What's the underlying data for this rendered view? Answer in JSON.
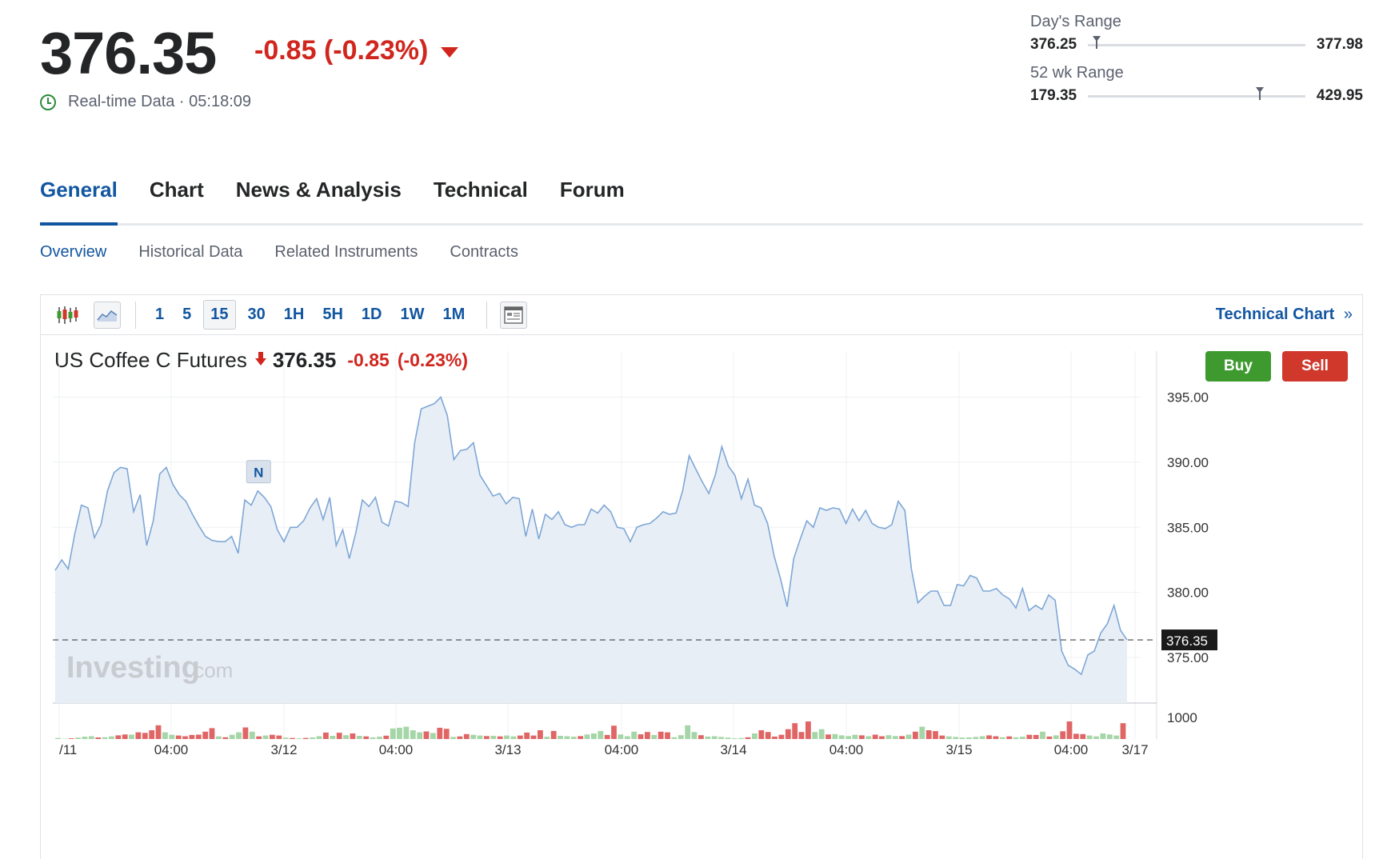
{
  "quote": {
    "last": "376.35",
    "change": "-0.85 (-0.23%)",
    "realtime": "Real-time Data · 05:18:09"
  },
  "ranges": [
    {
      "label": "Day's Range",
      "low": "376.25",
      "high": "377.98",
      "position": 0.04
    },
    {
      "label": "52 wk Range",
      "low": "179.35",
      "high": "429.95",
      "position": 0.79
    }
  ],
  "tabs": [
    "General",
    "Chart",
    "News & Analysis",
    "Technical",
    "Forum"
  ],
  "subtabs": [
    "Overview",
    "Historical Data",
    "Related Instruments",
    "Contracts"
  ],
  "toolbar": {
    "intervals": [
      "1",
      "5",
      "15",
      "30",
      "1H",
      "5H",
      "1D",
      "1W",
      "1M"
    ],
    "active_interval": "15",
    "technical_link": "Technical Chart"
  },
  "instrument": {
    "name": "US Coffee C Futures",
    "price": "376.35",
    "change": "-0.85",
    "change_pct": "(-0.23%)",
    "buy_label": "Buy",
    "sell_label": "Sell"
  },
  "watermark": {
    "brand": "Investing",
    "suffix": ".com"
  },
  "news_marker": "N",
  "chart_data": {
    "type": "area",
    "title": "",
    "y_ticks": [
      "395.00",
      "390.00",
      "385.00",
      "380.00",
      "375.00"
    ],
    "ylim": [
      371.5,
      397
    ],
    "x_tick_labels": [
      "/11",
      "04:00",
      "3/12",
      "04:00",
      "3/13",
      "04:00",
      "3/14",
      "04:00",
      "3/15",
      "04:00",
      "3/17"
    ],
    "current_price_label": "376.35",
    "current_price": 376.35,
    "volume_tick_label": "1000",
    "price_series": [
      381.7,
      382.5,
      381.8,
      384.5,
      386.7,
      386.5,
      384.2,
      385.2,
      387.8,
      389.2,
      389.6,
      389.5,
      386.2,
      387.5,
      383.6,
      385.5,
      389.1,
      389.6,
      388.3,
      387.5,
      387.0,
      386.0,
      385.1,
      384.3,
      384.0,
      383.9,
      383.9,
      384.3,
      383.0,
      387.1,
      386.7,
      387.8,
      387.3,
      386.6,
      384.8,
      383.9,
      385.0,
      385.0,
      385.5,
      386.5,
      387.2,
      385.6,
      387.3,
      383.6,
      384.8,
      382.6,
      384.6,
      387.1,
      386.6,
      387.3,
      385.4,
      385.1,
      387.0,
      386.9,
      386.6,
      391.5,
      394.1,
      394.3,
      394.5,
      395.0,
      393.6,
      390.2,
      390.9,
      391.0,
      391.5,
      389.0,
      388.2,
      387.4,
      387.6,
      386.8,
      387.3,
      387.2,
      384.3,
      386.4,
      384.1,
      386.0,
      385.6,
      386.2,
      385.2,
      385.0,
      385.2,
      385.2,
      386.4,
      386.1,
      386.7,
      386.2,
      385.0,
      384.9,
      383.9,
      385.0,
      385.2,
      385.3,
      385.7,
      386.2,
      386.0,
      386.1,
      387.8,
      390.5,
      389.5,
      388.5,
      387.6,
      389.0,
      391.2,
      389.7,
      389.0,
      387.2,
      388.7,
      386.7,
      386.5,
      385.3,
      382.8,
      381.0,
      378.9,
      382.6,
      384.1,
      385.5,
      385.0,
      386.5,
      386.3,
      386.5,
      386.4,
      385.3,
      386.4,
      385.5,
      386.3,
      385.3,
      385.0,
      384.9,
      385.2,
      387.0,
      386.3,
      381.8,
      379.2,
      379.7,
      380.1,
      380.1,
      379.0,
      379.0,
      380.6,
      380.5,
      381.3,
      381.1,
      380.1,
      380.1,
      380.3,
      379.8,
      379.5,
      378.8,
      380.3,
      378.6,
      379.0,
      378.7,
      379.8,
      379.4,
      375.5,
      374.4,
      374.1,
      373.7,
      375.2,
      375.5,
      376.9,
      377.6,
      379.0,
      377.1,
      376.35
    ],
    "volume_series": [
      {
        "v": 60,
        "up": true
      },
      {
        "v": 20,
        "up": true
      },
      {
        "v": 40,
        "up": false
      },
      {
        "v": 80,
        "up": true
      },
      {
        "v": 130,
        "up": true
      },
      {
        "v": 160,
        "up": true
      },
      {
        "v": 90,
        "up": false
      },
      {
        "v": 100,
        "up": true
      },
      {
        "v": 150,
        "up": true
      },
      {
        "v": 210,
        "up": false
      },
      {
        "v": 260,
        "up": false
      },
      {
        "v": 250,
        "up": true
      },
      {
        "v": 380,
        "up": false
      },
      {
        "v": 350,
        "up": false
      },
      {
        "v": 500,
        "up": false
      },
      {
        "v": 780,
        "up": false
      },
      {
        "v": 380,
        "up": true
      },
      {
        "v": 240,
        "up": true
      },
      {
        "v": 200,
        "up": false
      },
      {
        "v": 160,
        "up": false
      },
      {
        "v": 230,
        "up": false
      },
      {
        "v": 250,
        "up": false
      },
      {
        "v": 420,
        "up": false
      },
      {
        "v": 620,
        "up": false
      },
      {
        "v": 150,
        "up": true
      },
      {
        "v": 100,
        "up": false
      },
      {
        "v": 240,
        "up": true
      },
      {
        "v": 380,
        "up": true
      },
      {
        "v": 660,
        "up": false
      },
      {
        "v": 420,
        "up": true
      },
      {
        "v": 150,
        "up": false
      },
      {
        "v": 200,
        "up": true
      },
      {
        "v": 240,
        "up": false
      },
      {
        "v": 200,
        "up": false
      },
      {
        "v": 80,
        "up": true
      },
      {
        "v": 60,
        "up": false
      },
      {
        "v": 40,
        "up": true
      },
      {
        "v": 60,
        "up": false
      },
      {
        "v": 90,
        "up": true
      },
      {
        "v": 160,
        "up": true
      },
      {
        "v": 370,
        "up": false
      },
      {
        "v": 180,
        "up": true
      },
      {
        "v": 360,
        "up": false
      },
      {
        "v": 220,
        "up": true
      },
      {
        "v": 320,
        "up": false
      },
      {
        "v": 180,
        "up": true
      },
      {
        "v": 150,
        "up": false
      },
      {
        "v": 90,
        "up": true
      },
      {
        "v": 130,
        "up": true
      },
      {
        "v": 190,
        "up": false
      },
      {
        "v": 600,
        "up": true
      },
      {
        "v": 640,
        "up": true
      },
      {
        "v": 700,
        "up": true
      },
      {
        "v": 500,
        "up": true
      },
      {
        "v": 380,
        "up": true
      },
      {
        "v": 430,
        "up": false
      },
      {
        "v": 340,
        "up": true
      },
      {
        "v": 640,
        "up": false
      },
      {
        "v": 580,
        "up": false
      },
      {
        "v": 120,
        "up": true
      },
      {
        "v": 150,
        "up": false
      },
      {
        "v": 280,
        "up": false
      },
      {
        "v": 240,
        "up": true
      },
      {
        "v": 200,
        "up": true
      },
      {
        "v": 170,
        "up": false
      },
      {
        "v": 180,
        "up": true
      },
      {
        "v": 150,
        "up": false
      },
      {
        "v": 200,
        "up": true
      },
      {
        "v": 150,
        "up": true
      },
      {
        "v": 200,
        "up": false
      },
      {
        "v": 370,
        "up": false
      },
      {
        "v": 200,
        "up": false
      },
      {
        "v": 500,
        "up": false
      },
      {
        "v": 130,
        "up": true
      },
      {
        "v": 460,
        "up": false
      },
      {
        "v": 180,
        "up": true
      },
      {
        "v": 160,
        "up": true
      },
      {
        "v": 130,
        "up": true
      },
      {
        "v": 170,
        "up": false
      },
      {
        "v": 260,
        "up": true
      },
      {
        "v": 320,
        "up": true
      },
      {
        "v": 460,
        "up": true
      },
      {
        "v": 230,
        "up": false
      },
      {
        "v": 760,
        "up": false
      },
      {
        "v": 260,
        "up": true
      },
      {
        "v": 160,
        "up": true
      },
      {
        "v": 420,
        "up": true
      },
      {
        "v": 270,
        "up": false
      },
      {
        "v": 400,
        "up": false
      },
      {
        "v": 230,
        "up": true
      },
      {
        "v": 420,
        "up": false
      },
      {
        "v": 380,
        "up": false
      },
      {
        "v": 100,
        "up": true
      },
      {
        "v": 220,
        "up": true
      },
      {
        "v": 780,
        "up": true
      },
      {
        "v": 400,
        "up": true
      },
      {
        "v": 220,
        "up": false
      },
      {
        "v": 140,
        "up": true
      },
      {
        "v": 160,
        "up": true
      },
      {
        "v": 120,
        "up": true
      },
      {
        "v": 80,
        "up": true
      },
      {
        "v": 40,
        "up": true
      },
      {
        "v": 60,
        "up": true
      },
      {
        "v": 100,
        "up": false
      },
      {
        "v": 320,
        "up": true
      },
      {
        "v": 500,
        "up": false
      },
      {
        "v": 400,
        "up": false
      },
      {
        "v": 140,
        "up": false
      },
      {
        "v": 240,
        "up": false
      },
      {
        "v": 560,
        "up": false
      },
      {
        "v": 900,
        "up": false
      },
      {
        "v": 400,
        "up": false
      },
      {
        "v": 1000,
        "up": false
      },
      {
        "v": 400,
        "up": true
      },
      {
        "v": 560,
        "up": true
      },
      {
        "v": 260,
        "up": false
      },
      {
        "v": 280,
        "up": true
      },
      {
        "v": 210,
        "up": true
      },
      {
        "v": 170,
        "up": true
      },
      {
        "v": 240,
        "up": true
      },
      {
        "v": 210,
        "up": false
      },
      {
        "v": 160,
        "up": true
      },
      {
        "v": 250,
        "up": false
      },
      {
        "v": 160,
        "up": false
      },
      {
        "v": 220,
        "up": true
      },
      {
        "v": 170,
        "up": true
      },
      {
        "v": 170,
        "up": false
      },
      {
        "v": 250,
        "up": true
      },
      {
        "v": 420,
        "up": false
      },
      {
        "v": 700,
        "up": true
      },
      {
        "v": 500,
        "up": false
      },
      {
        "v": 450,
        "up": false
      },
      {
        "v": 200,
        "up": false
      },
      {
        "v": 150,
        "up": true
      },
      {
        "v": 120,
        "up": true
      },
      {
        "v": 80,
        "up": true
      },
      {
        "v": 90,
        "up": true
      },
      {
        "v": 120,
        "up": true
      },
      {
        "v": 160,
        "up": true
      },
      {
        "v": 210,
        "up": false
      },
      {
        "v": 160,
        "up": false
      },
      {
        "v": 100,
        "up": true
      },
      {
        "v": 150,
        "up": false
      },
      {
        "v": 100,
        "up": true
      },
      {
        "v": 130,
        "up": true
      },
      {
        "v": 240,
        "up": false
      },
      {
        "v": 230,
        "up": false
      },
      {
        "v": 420,
        "up": true
      },
      {
        "v": 140,
        "up": false
      },
      {
        "v": 210,
        "up": true
      },
      {
        "v": 440,
        "up": false
      },
      {
        "v": 1000,
        "up": false
      },
      {
        "v": 300,
        "up": false
      },
      {
        "v": 280,
        "up": false
      },
      {
        "v": 200,
        "up": true
      },
      {
        "v": 150,
        "up": true
      },
      {
        "v": 320,
        "up": true
      },
      {
        "v": 260,
        "up": true
      },
      {
        "v": 200,
        "up": true
      },
      {
        "v": 900,
        "up": false
      }
    ]
  },
  "colors": {
    "accent": "#1256a0",
    "negative": "#d0261e",
    "buy": "#3e9a2f",
    "sell": "#d0382c",
    "line": "#7ea7d6",
    "area": "#e8eef6",
    "vol_up": "#a5d6a7",
    "vol_down": "#e06666"
  }
}
